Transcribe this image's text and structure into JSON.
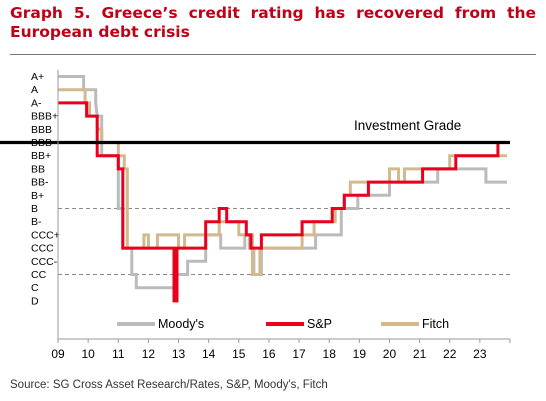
{
  "title": "Graph 5. Greece’s credit rating has recovered from the European debt crisis",
  "source": "Source: SG Cross Asset Research/Rates, S&P, Moody's, Fitch",
  "chart_data": {
    "type": "line",
    "title": "Graph 5. Greece’s credit rating has recovered from the European debt crisis",
    "y_categories": [
      "A+",
      "A",
      "A-",
      "BBB+",
      "BBB",
      "BBB-",
      "BB+",
      "BB",
      "BB-",
      "B+",
      "B",
      "B-",
      "CCC+",
      "CCC",
      "CCC-",
      "CC",
      "C",
      "D"
    ],
    "x_range": [
      2009,
      2024
    ],
    "x_ticks": [
      "09",
      "10",
      "11",
      "12",
      "13",
      "14",
      "15",
      "16",
      "17",
      "18",
      "19",
      "20",
      "21",
      "22",
      "23"
    ],
    "x_tick_values": [
      2009,
      2010,
      2011,
      2012,
      2013,
      2014,
      2015,
      2016,
      2017,
      2018,
      2019,
      2020,
      2021,
      2022,
      2023
    ],
    "dashed_gridlines": [
      "BBB-",
      "B",
      "CC"
    ],
    "reference_line": {
      "label": "Investment Grade",
      "rating": "BBB-",
      "color": "#000000"
    },
    "legend_position": "bottom",
    "series": [
      {
        "name": "Moody's",
        "color": "#bbbbbb",
        "points": [
          [
            2009.0,
            "A+"
          ],
          [
            2009.85,
            "A+"
          ],
          [
            2009.85,
            "A"
          ],
          [
            2010.25,
            "A"
          ],
          [
            2010.25,
            "A-"
          ],
          [
            2010.3,
            "BBB+"
          ],
          [
            2010.45,
            "BBB+"
          ],
          [
            2010.45,
            "BB+"
          ],
          [
            2011.0,
            "BB+"
          ],
          [
            2011.0,
            "B"
          ],
          [
            2011.15,
            "B"
          ],
          [
            2011.15,
            "CCC"
          ],
          [
            2011.45,
            "CCC"
          ],
          [
            2011.45,
            "CC"
          ],
          [
            2011.6,
            "CC"
          ],
          [
            2011.6,
            "C"
          ],
          [
            2012.15,
            "C"
          ],
          [
            2012.9,
            "C"
          ],
          [
            2012.9,
            "CC"
          ],
          [
            2013.3,
            "CC"
          ],
          [
            2013.3,
            "CCC-"
          ],
          [
            2013.9,
            "CCC-"
          ],
          [
            2013.9,
            "CCC+"
          ],
          [
            2014.4,
            "CCC+"
          ],
          [
            2014.4,
            "CCC"
          ],
          [
            2015.2,
            "CCC"
          ],
          [
            2015.2,
            "CCC+"
          ],
          [
            2015.35,
            "CCC+"
          ],
          [
            2015.35,
            "CCC"
          ],
          [
            2015.5,
            "CCC"
          ],
          [
            2015.5,
            "CC"
          ],
          [
            2015.75,
            "CC"
          ],
          [
            2015.75,
            "CCC"
          ],
          [
            2017.55,
            "CCC"
          ],
          [
            2017.55,
            "CCC+"
          ],
          [
            2018.4,
            "CCC+"
          ],
          [
            2018.4,
            "B"
          ],
          [
            2018.95,
            "B"
          ],
          [
            2018.95,
            "B+"
          ],
          [
            2020.0,
            "B+"
          ],
          [
            2020.0,
            "BB-"
          ],
          [
            2021.0,
            "BB-"
          ],
          [
            2021.6,
            "BB-"
          ],
          [
            2021.6,
            "BB"
          ],
          [
            2023.2,
            "BB"
          ],
          [
            2023.2,
            "BB-"
          ],
          [
            2023.9,
            "BB-"
          ]
        ]
      },
      {
        "name": "Fitch",
        "color": "#d2b98e",
        "points": [
          [
            2009.0,
            "A"
          ],
          [
            2009.9,
            "A"
          ],
          [
            2009.9,
            "A-"
          ],
          [
            2010.05,
            "A-"
          ],
          [
            2010.05,
            "BBB+"
          ],
          [
            2010.3,
            "BBB+"
          ],
          [
            2010.3,
            "BBB"
          ],
          [
            2010.45,
            "BBB"
          ],
          [
            2010.45,
            "BBB-"
          ],
          [
            2011.0,
            "BBB-"
          ],
          [
            2011.0,
            "BB+"
          ],
          [
            2011.2,
            "BB+"
          ],
          [
            2011.2,
            "BB"
          ],
          [
            2011.3,
            "BB"
          ],
          [
            2011.3,
            "CCC"
          ],
          [
            2011.85,
            "CCC"
          ],
          [
            2011.85,
            "CCC+"
          ],
          [
            2012.0,
            "CCC+"
          ],
          [
            2012.0,
            "CCC"
          ],
          [
            2012.3,
            "CCC"
          ],
          [
            2012.3,
            "CCC+"
          ],
          [
            2013.0,
            "CCC+"
          ],
          [
            2013.0,
            "CCC"
          ],
          [
            2013.2,
            "CCC"
          ],
          [
            2013.2,
            "CCC+"
          ],
          [
            2014.35,
            "CCC+"
          ],
          [
            2014.35,
            "B-"
          ],
          [
            2015.0,
            "B-"
          ],
          [
            2015.0,
            "CCC+"
          ],
          [
            2015.45,
            "CCC+"
          ],
          [
            2015.45,
            "CC"
          ],
          [
            2015.7,
            "CC"
          ],
          [
            2015.7,
            "CCC"
          ],
          [
            2017.1,
            "CCC"
          ],
          [
            2017.1,
            "CCC+"
          ],
          [
            2017.5,
            "CCC+"
          ],
          [
            2017.5,
            "B-"
          ],
          [
            2018.2,
            "B-"
          ],
          [
            2018.2,
            "B"
          ],
          [
            2018.5,
            "B"
          ],
          [
            2018.5,
            "B+"
          ],
          [
            2018.7,
            "B+"
          ],
          [
            2018.7,
            "BB-"
          ],
          [
            2020.0,
            "BB-"
          ],
          [
            2020.0,
            "BB"
          ],
          [
            2020.3,
            "BB"
          ],
          [
            2020.3,
            "BB-"
          ],
          [
            2020.5,
            "BB-"
          ],
          [
            2020.5,
            "BB"
          ],
          [
            2022.0,
            "BB"
          ],
          [
            2022.0,
            "BB+"
          ],
          [
            2023.7,
            "BB+"
          ],
          [
            2023.7,
            "BB+"
          ],
          [
            2023.9,
            "BB+"
          ]
        ]
      },
      {
        "name": "S&P",
        "color": "#e8001c",
        "points": [
          [
            2009.0,
            "A-"
          ],
          [
            2009.95,
            "A-"
          ],
          [
            2009.95,
            "BBB+"
          ],
          [
            2010.3,
            "BBB+"
          ],
          [
            2010.3,
            "BB+"
          ],
          [
            2011.0,
            "BB+"
          ],
          [
            2011.0,
            "BB"
          ],
          [
            2011.15,
            "BB"
          ],
          [
            2011.15,
            "CCC"
          ],
          [
            2011.65,
            "CCC"
          ],
          [
            2011.65,
            "CCC"
          ],
          [
            2012.85,
            "CCC"
          ],
          [
            2012.85,
            "D"
          ],
          [
            2012.95,
            "D"
          ],
          [
            2012.95,
            "CCC"
          ],
          [
            2013.9,
            "CCC"
          ],
          [
            2013.9,
            "B-"
          ],
          [
            2014.35,
            "B-"
          ],
          [
            2014.35,
            "B"
          ],
          [
            2014.6,
            "B"
          ],
          [
            2014.6,
            "B-"
          ],
          [
            2015.25,
            "B-"
          ],
          [
            2015.25,
            "CCC+"
          ],
          [
            2015.4,
            "CCC+"
          ],
          [
            2015.4,
            "CCC"
          ],
          [
            2015.75,
            "CCC"
          ],
          [
            2015.75,
            "CCC+"
          ],
          [
            2017.1,
            "CCC+"
          ],
          [
            2017.1,
            "B-"
          ],
          [
            2018.1,
            "B-"
          ],
          [
            2018.1,
            "B"
          ],
          [
            2018.5,
            "B"
          ],
          [
            2018.5,
            "B+"
          ],
          [
            2019.3,
            "B+"
          ],
          [
            2019.3,
            "BB-"
          ],
          [
            2020.3,
            "BB-"
          ],
          [
            2020.3,
            "BB-"
          ],
          [
            2021.1,
            "BB-"
          ],
          [
            2021.1,
            "BB"
          ],
          [
            2022.2,
            "BB"
          ],
          [
            2022.2,
            "BB+"
          ],
          [
            2023.1,
            "BB+"
          ],
          [
            2023.1,
            "BB+"
          ],
          [
            2023.6,
            "BB+"
          ],
          [
            2023.6,
            "BBB-"
          ],
          [
            2023.9,
            "BBB-"
          ]
        ]
      }
    ]
  }
}
